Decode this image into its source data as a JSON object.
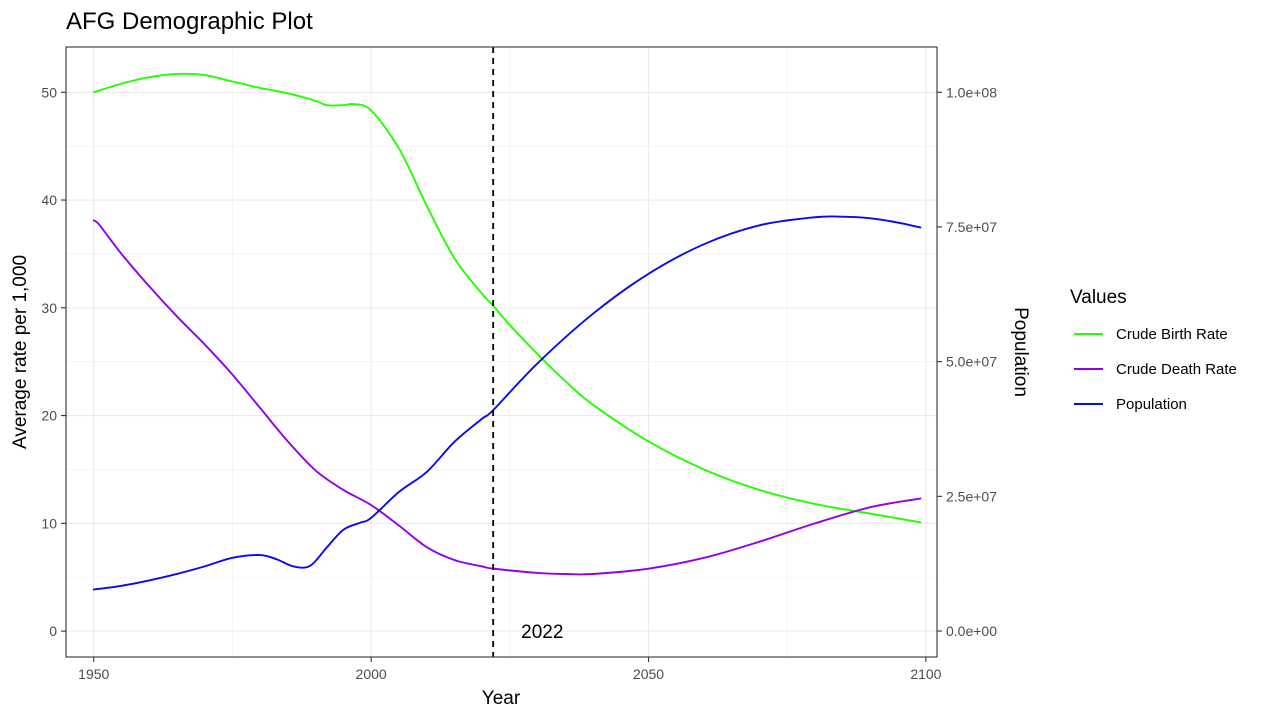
{
  "chart_data": {
    "type": "line",
    "title": "AFG Demographic Plot",
    "xlabel": "Year",
    "ylabel": "Average rate per 1,000",
    "y2label": "Population",
    "xlim": [
      1945,
      2102
    ],
    "ylim": [
      -2.4,
      54.2
    ],
    "y2lim": [
      -4820000,
      108400000
    ],
    "x_ticks": [
      1950,
      2000,
      2050,
      2100
    ],
    "y_ticks": [
      0,
      10,
      20,
      30,
      40,
      50
    ],
    "y2_ticks": [
      {
        "value": 0,
        "label": "0.0e+00"
      },
      {
        "value": 25000000,
        "label": "2.5e+07"
      },
      {
        "value": 50000000,
        "label": "5.0e+07"
      },
      {
        "value": 75000000,
        "label": "7.5e+07"
      },
      {
        "value": 100000000,
        "label": "1.0e+08"
      }
    ],
    "grid": true,
    "legend_title": "Values",
    "legend_position": "right",
    "vline": {
      "x": 2022,
      "label": "2022",
      "style": "dashed"
    },
    "series": [
      {
        "name": "Crude Birth Rate",
        "color": "#22ff00",
        "axis": "left",
        "x": [
          1950,
          1955,
          1960,
          1965,
          1970,
          1975,
          1980,
          1985,
          1990,
          1992,
          1995,
          1997,
          2000,
          2005,
          2010,
          2015,
          2020,
          2022,
          2025,
          2030,
          2035,
          2040,
          2050,
          2060,
          2070,
          2080,
          2090,
          2099
        ],
        "y": [
          50.0,
          50.8,
          51.4,
          51.7,
          51.6,
          51.0,
          50.4,
          49.9,
          49.2,
          48.8,
          48.8,
          48.9,
          48.3,
          44.8,
          39.5,
          34.6,
          31.3,
          30.2,
          28.4,
          25.7,
          23.2,
          21.0,
          17.6,
          15.0,
          13.1,
          11.8,
          10.9,
          10.1
        ]
      },
      {
        "name": "Crude Death Rate",
        "color": "#9400e6",
        "axis": "left",
        "x": [
          1950,
          1951,
          1955,
          1960,
          1965,
          1970,
          1975,
          1980,
          1985,
          1990,
          1995,
          2000,
          2005,
          2010,
          2015,
          2020,
          2022,
          2030,
          2035,
          2040,
          2050,
          2060,
          2070,
          2080,
          2090,
          2099
        ],
        "y": [
          38.1,
          37.7,
          35.0,
          32.0,
          29.2,
          26.6,
          23.8,
          20.7,
          17.6,
          14.9,
          13.1,
          11.7,
          9.8,
          7.8,
          6.6,
          6.0,
          5.8,
          5.4,
          5.3,
          5.3,
          5.8,
          6.8,
          8.3,
          10.0,
          11.5,
          12.3
        ]
      },
      {
        "name": "Population",
        "color": "#0a0aee",
        "axis": "right",
        "x": [
          1950,
          1955,
          1960,
          1965,
          1970,
          1975,
          1980,
          1983,
          1986,
          1989,
          1992,
          1995,
          1998,
          2000,
          2005,
          2010,
          2015,
          2020,
          2022,
          2030,
          2040,
          2050,
          2060,
          2070,
          2080,
          2085,
          2090,
          2095,
          2099
        ],
        "y": [
          7700000,
          8400000,
          9400000,
          10600000,
          12000000,
          13600000,
          14100000,
          13300000,
          12000000,
          12100000,
          15500000,
          18800000,
          20100000,
          21000000,
          25800000,
          29500000,
          35100000,
          39400000,
          41000000,
          49700000,
          58900000,
          66300000,
          71800000,
          75300000,
          76800000,
          76900000,
          76600000,
          75800000,
          74900000
        ]
      }
    ]
  }
}
